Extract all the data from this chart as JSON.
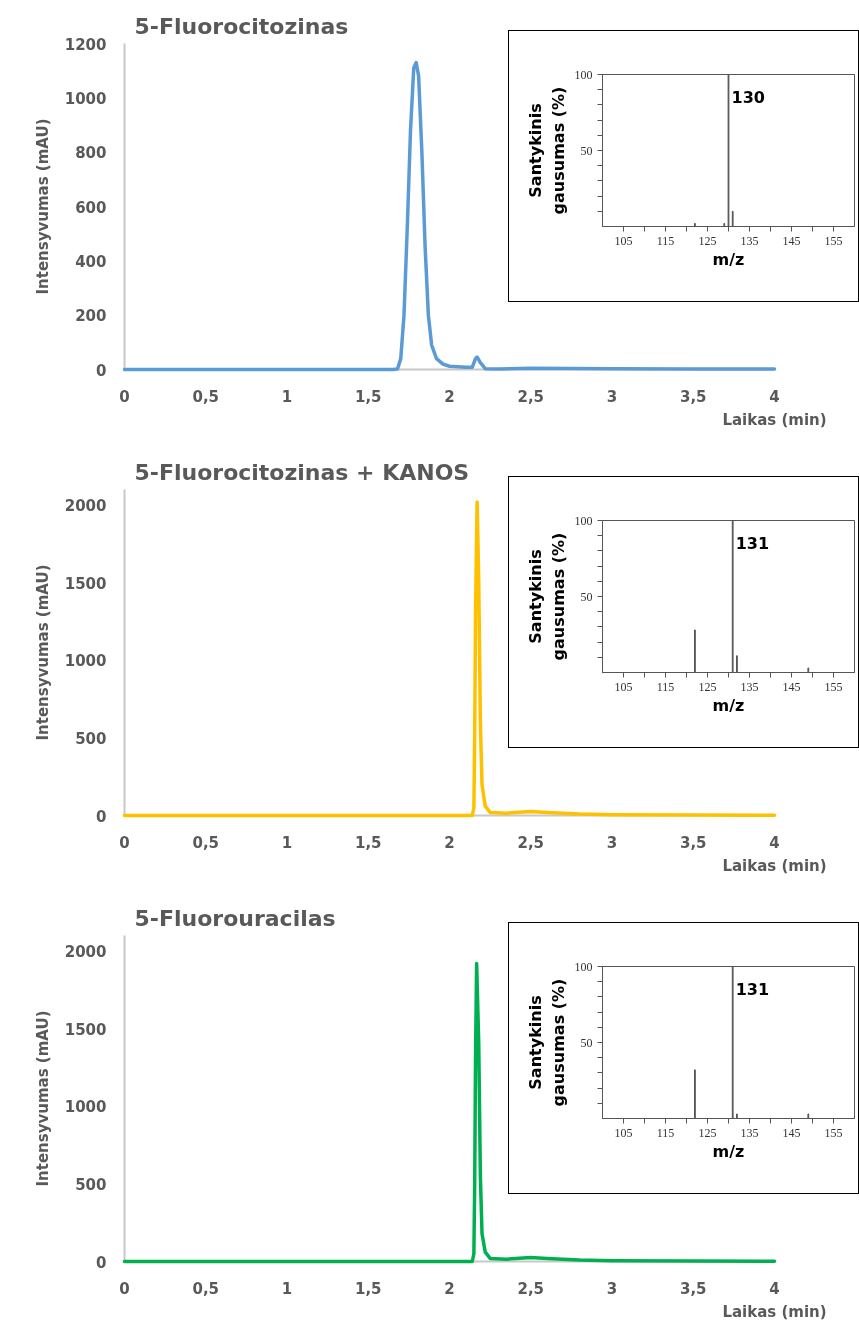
{
  "chart_data": [
    {
      "type": "line",
      "title": "5-Fluorocitozinas",
      "xlabel": "Laikas (min)",
      "ylabel": "Intensyvumas (mAU)",
      "xlim": [
        0,
        4
      ],
      "ylim": [
        0,
        1200
      ],
      "xticks": [
        0,
        {
          "value": 0.5,
          "label": "0,5"
        },
        1,
        {
          "value": 1.5,
          "label": "1,5"
        },
        2,
        {
          "value": 2.5,
          "label": "2,5"
        },
        3,
        {
          "value": 3.5,
          "label": "3,5"
        },
        4
      ],
      "yticks": [
        0,
        200,
        400,
        600,
        800,
        1000,
        1200
      ],
      "series": [
        {
          "color": "#5b9bd5",
          "x": [
            0,
            0.5,
            1,
            1.5,
            1.65,
            1.68,
            1.7,
            1.72,
            1.74,
            1.76,
            1.78,
            1.795,
            1.81,
            1.83,
            1.85,
            1.87,
            1.89,
            1.92,
            1.96,
            2.0,
            2.1,
            2.14,
            2.16,
            2.17,
            2.19,
            2.22,
            2.3,
            2.5,
            3,
            3.5,
            4
          ],
          "values": [
            0,
            0,
            0,
            0,
            0,
            2,
            40,
            200,
            520,
            880,
            1110,
            1130,
            1080,
            800,
            450,
            200,
            90,
            40,
            20,
            12,
            8,
            8,
            40,
            46,
            25,
            3,
            2,
            5,
            3,
            2,
            2
          ]
        }
      ]
    },
    {
      "type": "bar",
      "xlabel": "m/z",
      "ylabel": "Santykinis\ngausumas (%)",
      "xlim": [
        100,
        160
      ],
      "ylim": [
        0,
        100
      ],
      "xticks": [
        105,
        {
          "value": 110,
          "label": null
        },
        115,
        {
          "value": 120,
          "label": null
        },
        125,
        {
          "value": 130,
          "label": null
        },
        135,
        {
          "value": 140,
          "label": null
        },
        145,
        {
          "value": 150,
          "label": null
        },
        155
      ],
      "yticks": [
        {
          "value": 10,
          "label": null
        },
        {
          "value": 20,
          "label": null
        },
        {
          "value": 30,
          "label": null
        },
        {
          "value": 40,
          "label": null
        },
        50,
        {
          "value": 60,
          "label": null
        },
        {
          "value": 70,
          "label": null
        },
        {
          "value": 80,
          "label": null
        },
        {
          "value": 90,
          "label": null
        },
        100
      ],
      "series": [
        {
          "color": "#555555",
          "x": [
            122,
            129,
            130,
            131
          ],
          "values": [
            2,
            2,
            100,
            10
          ]
        }
      ],
      "annotations": [
        "130"
      ]
    },
    {
      "type": "line",
      "title": "5-Fluorocitozinas + KANOS",
      "xlabel": "Laikas (min)",
      "ylabel": "Intensyvumas (mAU)",
      "xlim": [
        0,
        4
      ],
      "ylim": [
        0,
        2100
      ],
      "xticks": [
        0,
        {
          "value": 0.5,
          "label": "0,5"
        },
        1,
        {
          "value": 1.5,
          "label": "1,5"
        },
        2,
        {
          "value": 2.5,
          "label": "2,5"
        },
        3,
        {
          "value": 3.5,
          "label": "3,5"
        },
        4
      ],
      "yticks": [
        0,
        500,
        1000,
        1500,
        2000
      ],
      "series": [
        {
          "color": "#ffc000",
          "x": [
            0,
            0.5,
            1,
            1.5,
            2,
            2.14,
            2.15,
            2.155,
            2.16,
            2.17,
            2.18,
            2.19,
            2.2,
            2.22,
            2.25,
            2.35,
            2.5,
            2.6,
            2.8,
            3,
            3.5,
            4
          ],
          "values": [
            0,
            0,
            0,
            0,
            0,
            0,
            50,
            500,
            1300,
            2020,
            1500,
            600,
            200,
            60,
            20,
            15,
            25,
            20,
            10,
            5,
            3,
            2
          ]
        }
      ]
    },
    {
      "type": "bar",
      "xlabel": "m/z",
      "ylabel": "Santykinis\ngausumas (%)",
      "xlim": [
        100,
        160
      ],
      "ylim": [
        0,
        100
      ],
      "xticks": [
        105,
        {
          "value": 110,
          "label": null
        },
        115,
        {
          "value": 120,
          "label": null
        },
        125,
        {
          "value": 130,
          "label": null
        },
        135,
        {
          "value": 140,
          "label": null
        },
        145,
        {
          "value": 150,
          "label": null
        },
        155
      ],
      "yticks": [
        {
          "value": 10,
          "label": null
        },
        {
          "value": 20,
          "label": null
        },
        {
          "value": 30,
          "label": null
        },
        {
          "value": 40,
          "label": null
        },
        50,
        {
          "value": 60,
          "label": null
        },
        {
          "value": 70,
          "label": null
        },
        {
          "value": 80,
          "label": null
        },
        {
          "value": 90,
          "label": null
        },
        100
      ],
      "series": [
        {
          "color": "#555555",
          "x": [
            122,
            131,
            132,
            149
          ],
          "values": [
            28,
            100,
            11,
            3
          ]
        }
      ],
      "annotations": [
        "131"
      ]
    },
    {
      "type": "line",
      "title": "5-Fluorouracilas",
      "xlabel": "Laikas (min)",
      "ylabel": "Intensyvumas (mAU)",
      "xlim": [
        0,
        4
      ],
      "ylim": [
        0,
        2100
      ],
      "xticks": [
        0,
        {
          "value": 0.5,
          "label": "0,5"
        },
        1,
        {
          "value": 1.5,
          "label": "1,5"
        },
        2,
        {
          "value": 2.5,
          "label": "2,5"
        },
        3,
        {
          "value": 3.5,
          "label": "3,5"
        },
        4
      ],
      "yticks": [
        0,
        500,
        1000,
        1500,
        2000
      ],
      "series": [
        {
          "color": "#00b050",
          "x": [
            0,
            0.5,
            1,
            1.5,
            2,
            2.14,
            2.15,
            2.155,
            2.16,
            2.167,
            2.18,
            2.19,
            2.2,
            2.22,
            2.25,
            2.35,
            2.5,
            2.6,
            2.8,
            3,
            3.5,
            4
          ],
          "values": [
            0,
            0,
            0,
            0,
            0,
            0,
            50,
            500,
            1300,
            1920,
            1400,
            550,
            180,
            60,
            20,
            15,
            25,
            20,
            10,
            5,
            3,
            2
          ]
        }
      ]
    },
    {
      "type": "bar",
      "xlabel": "m/z",
      "ylabel": "Santykinis\ngausumas (%)",
      "xlim": [
        100,
        160
      ],
      "ylim": [
        0,
        100
      ],
      "xticks": [
        105,
        {
          "value": 110,
          "label": null
        },
        115,
        {
          "value": 120,
          "label": null
        },
        125,
        {
          "value": 130,
          "label": null
        },
        135,
        {
          "value": 140,
          "label": null
        },
        145,
        {
          "value": 150,
          "label": null
        },
        155
      ],
      "yticks": [
        {
          "value": 10,
          "label": null
        },
        {
          "value": 20,
          "label": null
        },
        {
          "value": 30,
          "label": null
        },
        {
          "value": 40,
          "label": null
        },
        50,
        {
          "value": 60,
          "label": null
        },
        {
          "value": 70,
          "label": null
        },
        {
          "value": 80,
          "label": null
        },
        {
          "value": 90,
          "label": null
        },
        100
      ],
      "series": [
        {
          "color": "#555555",
          "x": [
            122,
            131,
            132,
            149
          ],
          "values": [
            32,
            100,
            3,
            3
          ]
        }
      ],
      "annotations": [
        "131"
      ]
    }
  ]
}
